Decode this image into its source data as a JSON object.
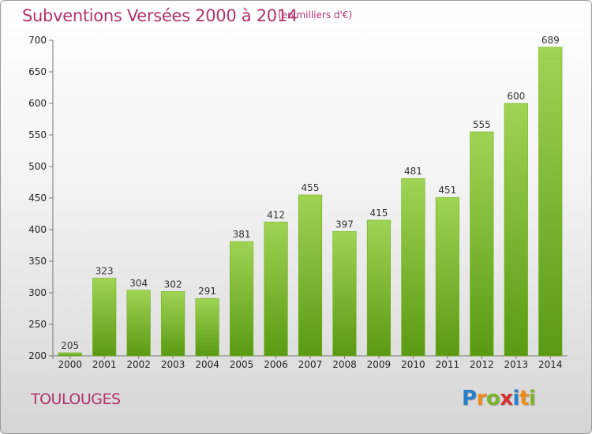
{
  "title": "Subventions Versées 2000 à 2014",
  "subtitle": "(en milliers d'€)",
  "commune": "TOULOUGES",
  "logo": {
    "letters": [
      "P",
      "r",
      "o",
      "x",
      "i",
      "t",
      "i"
    ],
    "colors": [
      "#2a7fc9",
      "#f08a1c",
      "#7ab52b",
      "#d62d2d",
      "#2a7fc9",
      "#f08a1c",
      "#7ab52b"
    ]
  },
  "colors": {
    "bar_top": "#9fd454",
    "bar_bottom": "#5a9a12",
    "text_accent": "#b0336b"
  },
  "chart_data": {
    "type": "bar",
    "title": "Subventions Versées 2000 à 2014",
    "subtitle": "(en milliers d'€)",
    "categories": [
      "2000",
      "2001",
      "2002",
      "2003",
      "2004",
      "2005",
      "2006",
      "2007",
      "2008",
      "2009",
      "2010",
      "2011",
      "2012",
      "2013",
      "2014"
    ],
    "values": [
      205,
      323,
      304,
      302,
      291,
      381,
      412,
      455,
      397,
      415,
      481,
      451,
      555,
      600,
      689
    ],
    "ylim": [
      200,
      700
    ],
    "yticks": [
      200,
      250,
      300,
      350,
      400,
      450,
      500,
      550,
      600,
      650,
      700
    ],
    "grid": false,
    "data_labels": true
  }
}
